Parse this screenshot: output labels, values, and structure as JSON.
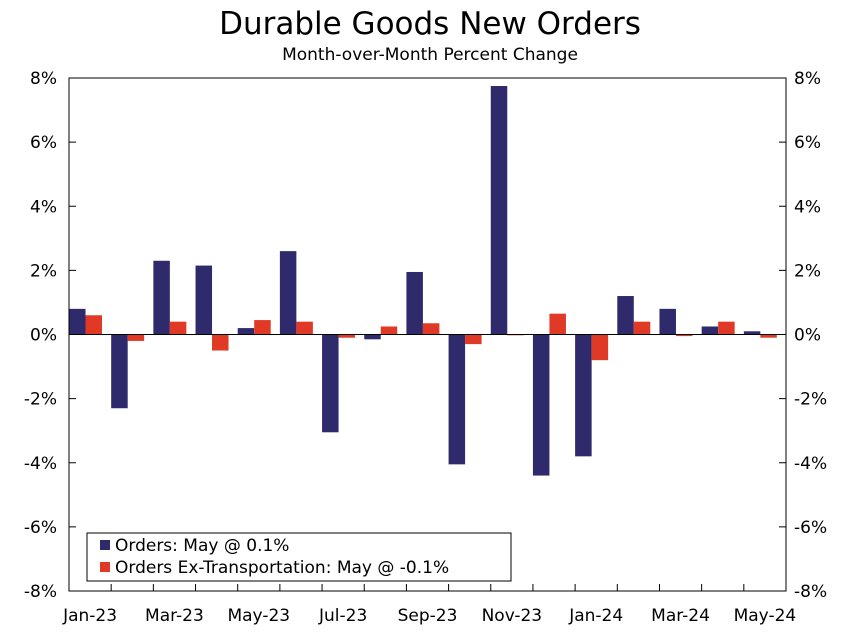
{
  "chart_data": {
    "type": "bar",
    "title": "Durable Goods New Orders",
    "subtitle": "Month-over-Month Percent Change",
    "ylim": [
      -8,
      8
    ],
    "y_ticks": [
      "8%",
      "6%",
      "4%",
      "2%",
      "0%",
      "-2%",
      "-4%",
      "-6%",
      "-8%"
    ],
    "y_tick_values": [
      8,
      6,
      4,
      2,
      0,
      -2,
      -4,
      -6,
      -8
    ],
    "categories": [
      "Jan-23",
      "Feb-23",
      "Mar-23",
      "Apr-23",
      "May-23",
      "Jun-23",
      "Jul-23",
      "Aug-23",
      "Sep-23",
      "Oct-23",
      "Nov-23",
      "Dec-23",
      "Jan-24",
      "Feb-24",
      "Mar-24",
      "Apr-24",
      "May-24"
    ],
    "x_tick_labels": [
      "Jan-23",
      "Mar-23",
      "May-23",
      "Jul-23",
      "Sep-23",
      "Nov-23",
      "Jan-24",
      "Mar-24",
      "May-24"
    ],
    "series": [
      {
        "name": "Orders",
        "color": "#2e2a6b",
        "values": [
          0.8,
          -2.3,
          2.3,
          2.15,
          0.2,
          2.6,
          -3.05,
          -0.15,
          1.95,
          -4.05,
          7.75,
          -4.4,
          -3.8,
          1.2,
          0.8,
          0.25,
          0.1
        ]
      },
      {
        "name": "Orders Ex-Transportation",
        "color": "#e03a26",
        "values": [
          0.6,
          -0.2,
          0.4,
          -0.5,
          0.45,
          0.4,
          -0.1,
          0.25,
          0.35,
          -0.3,
          0.0,
          0.65,
          -0.8,
          0.4,
          -0.05,
          0.4,
          -0.1
        ]
      }
    ],
    "legend": {
      "placement": "bottom-left",
      "entries": [
        "Orders: May @ 0.1%",
        "Orders Ex-Transportation: May @ -0.1%"
      ]
    }
  }
}
